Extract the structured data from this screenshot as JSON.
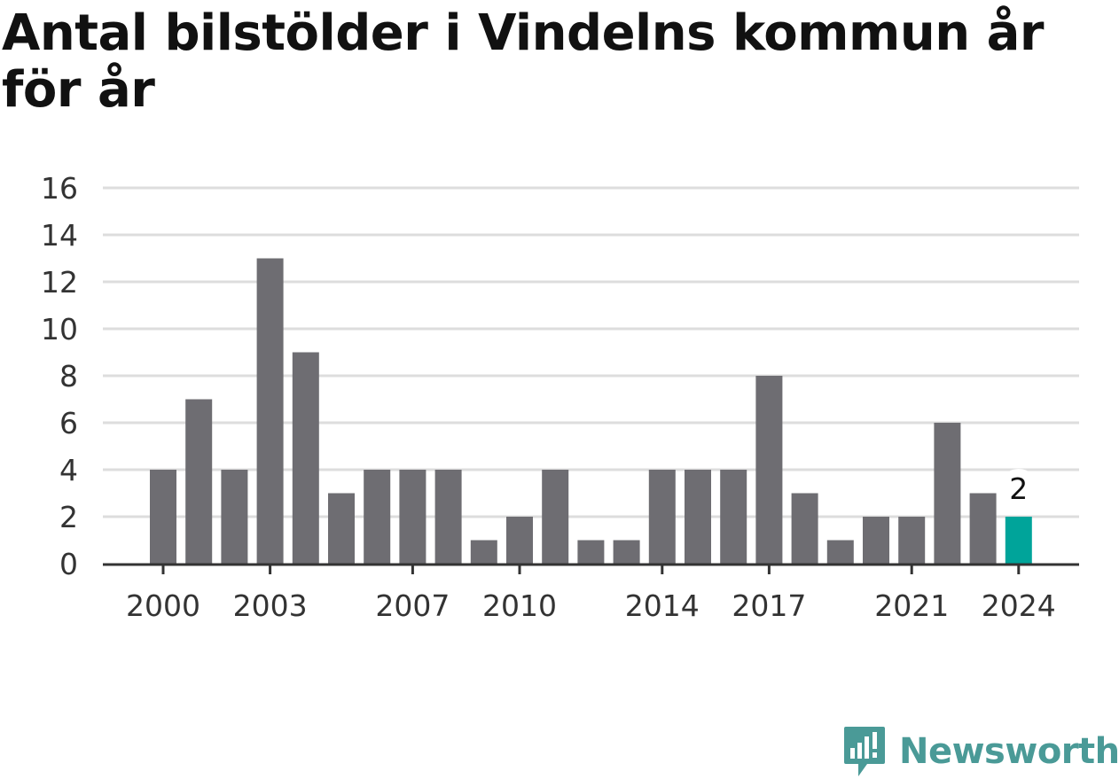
{
  "chart_data": {
    "type": "bar",
    "title": "Antal bilstölder i Vindelns kommun år för år",
    "xlabel": "",
    "ylabel": "",
    "categories": [
      2000,
      2001,
      2002,
      2003,
      2004,
      2005,
      2006,
      2007,
      2008,
      2009,
      2010,
      2011,
      2012,
      2013,
      2014,
      2015,
      2016,
      2017,
      2018,
      2019,
      2020,
      2021,
      2022,
      2023,
      2024
    ],
    "values": [
      4,
      7,
      4,
      13,
      9,
      3,
      4,
      4,
      4,
      1,
      2,
      4,
      1,
      1,
      4,
      4,
      4,
      8,
      3,
      1,
      2,
      2,
      6,
      3,
      2
    ],
    "ylim": [
      0,
      16
    ],
    "yticks": [
      0,
      2,
      4,
      6,
      8,
      10,
      12,
      14,
      16
    ],
    "xticks": [
      2000,
      2003,
      2007,
      2010,
      2014,
      2017,
      2021,
      2024
    ],
    "grid": true,
    "highlight": {
      "category": 2024,
      "label": "2"
    },
    "colors": {
      "bar": "#6e6d72",
      "highlight": "#00a49a",
      "grid": "#dddddd",
      "axis": "#333333"
    }
  },
  "brand": {
    "name": "Newsworthy",
    "icon": "newsworthy-logo-icon",
    "color": "#4a9a97"
  }
}
